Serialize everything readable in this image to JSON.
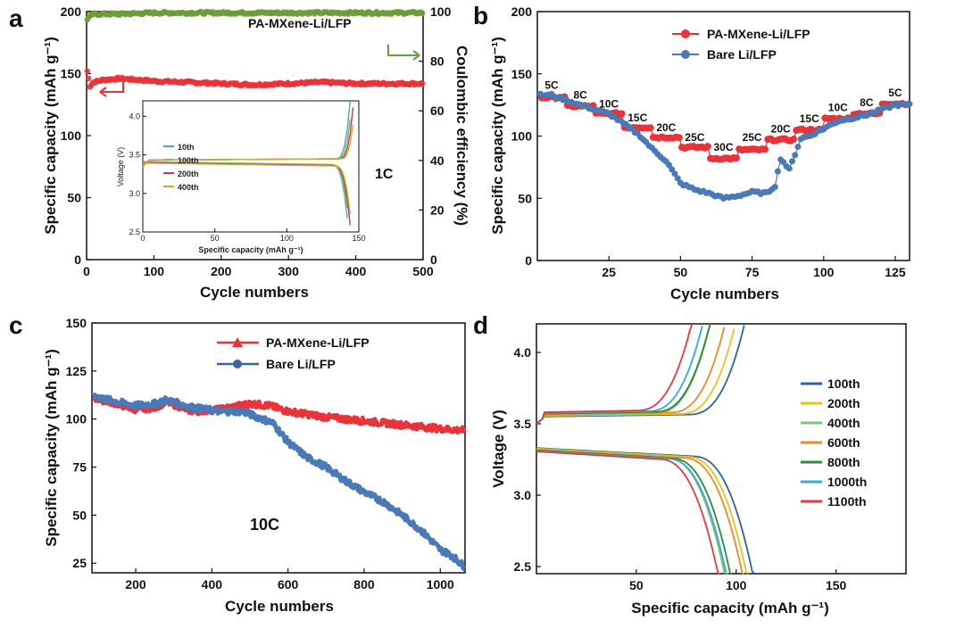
{
  "panels": {
    "a": "a",
    "b": "b",
    "c": "c",
    "d": "d"
  },
  "colors": {
    "red": "#e8333a",
    "green": "#6e9c3a",
    "blue": "#4a79b8",
    "darkred": "#d4202c"
  },
  "chart_data": [
    {
      "id": "a",
      "type": "scatter",
      "title": "PA-MXene-Li/LFP",
      "annotation": "1C",
      "xlabel": "Cycle numbers",
      "ylabel": "Specific capacity (mAh g⁻¹)",
      "y2label": "Coulombic efficiency (%)",
      "xlim": [
        0,
        500
      ],
      "ylim": [
        0,
        200
      ],
      "y2lim": [
        0,
        100
      ],
      "xticks": [
        "0",
        "100",
        "200",
        "300",
        "400",
        "500"
      ],
      "yticks": [
        "0",
        "50",
        "100",
        "150",
        "200"
      ],
      "y2ticks": [
        "0",
        "20",
        "40",
        "60",
        "80",
        "100"
      ],
      "series": [
        {
          "name": "Specific capacity",
          "axis": "left",
          "color": "#e8333a",
          "x": [
            1,
            5,
            10,
            25,
            50,
            100,
            150,
            200,
            250,
            300,
            350,
            400,
            450,
            500
          ],
          "y": [
            152,
            140,
            143,
            145,
            146,
            144,
            143,
            142,
            141,
            142,
            143,
            142,
            142,
            142
          ]
        },
        {
          "name": "Coulombic efficiency",
          "axis": "right",
          "color": "#6e9c3a",
          "x": [
            1,
            5,
            10,
            25,
            50,
            100,
            150,
            200,
            250,
            300,
            350,
            400,
            450,
            500
          ],
          "y": [
            97,
            98,
            99,
            99,
            99,
            99.5,
            99.5,
            99.5,
            99.5,
            99.5,
            99.5,
            99.5,
            99.5,
            99.5
          ]
        }
      ],
      "inset": {
        "type": "line",
        "xlabel": "Specific capacity (mAh g⁻¹)",
        "ylabel": "Voltage (V)",
        "xlim": [
          0,
          150
        ],
        "ylim": [
          2.5,
          4.2
        ],
        "xticks": [
          "0",
          "50",
          "100",
          "150"
        ],
        "yticks": [
          "2.5",
          "3.0",
          "3.5",
          "4.0"
        ],
        "legend": [
          {
            "name": "10th",
            "color": "#4aa8c4"
          },
          {
            "name": "100th",
            "color": "#7cbf5a"
          },
          {
            "name": "200th",
            "color": "#c0395a"
          },
          {
            "name": "400th",
            "color": "#d9a82a"
          }
        ]
      }
    },
    {
      "id": "b",
      "type": "scatter",
      "xlabel": "Cycle numbers",
      "ylabel": "Specific capacity (mAh g⁻¹)",
      "xlim": [
        0,
        130
      ],
      "ylim": [
        0,
        200
      ],
      "xticks": [
        "25",
        "50",
        "75",
        "100",
        "125"
      ],
      "yticks": [
        "0",
        "50",
        "100",
        "150",
        "200"
      ],
      "rates": [
        {
          "label": "5C",
          "x": 5,
          "y": 138
        },
        {
          "label": "8C",
          "x": 15,
          "y": 130
        },
        {
          "label": "10C",
          "x": 25,
          "y": 123
        },
        {
          "label": "15C",
          "x": 35,
          "y": 112
        },
        {
          "label": "20C",
          "x": 45,
          "y": 104
        },
        {
          "label": "25C",
          "x": 55,
          "y": 96
        },
        {
          "label": "30C",
          "x": 65,
          "y": 88
        },
        {
          "label": "25C",
          "x": 75,
          "y": 96
        },
        {
          "label": "20C",
          "x": 85,
          "y": 103
        },
        {
          "label": "15C",
          "x": 95,
          "y": 111
        },
        {
          "label": "10C",
          "x": 105,
          "y": 120
        },
        {
          "label": "8C",
          "x": 115,
          "y": 124
        },
        {
          "label": "5C",
          "x": 125,
          "y": 132
        }
      ],
      "series": [
        {
          "name": "PA-MXene-Li/LFP",
          "color": "#e8333a",
          "x": [
            5,
            15,
            25,
            35,
            45,
            55,
            65,
            75,
            85,
            95,
            105,
            115,
            125
          ],
          "y": [
            131,
            124,
            118,
            107,
            99,
            91,
            82,
            89,
            97,
            105,
            114,
            118,
            126
          ]
        },
        {
          "name": "Bare Li/LFP",
          "color": "#4a79b8",
          "x": [
            5,
            15,
            25,
            32,
            36,
            40,
            45,
            50,
            55,
            60,
            65,
            70,
            75,
            80,
            83,
            85,
            88,
            92,
            95,
            105,
            115,
            125
          ],
          "y": [
            133,
            125,
            118,
            107,
            100,
            90,
            80,
            62,
            57,
            54,
            50,
            52,
            55,
            54,
            60,
            82,
            73,
            98,
            100,
            112,
            117,
            125
          ]
        }
      ]
    },
    {
      "id": "c",
      "type": "line",
      "annotation": "10C",
      "xlabel": "Cycle numbers",
      "ylabel": "Specific capacity (mAh g⁻¹)",
      "xlim": [
        85,
        1065
      ],
      "ylim": [
        20,
        150
      ],
      "xticks": [
        "200",
        "400",
        "600",
        "800",
        "1000"
      ],
      "yticks": [
        "25",
        "50",
        "75",
        "100",
        "125",
        "150"
      ],
      "series": [
        {
          "name": "PA-MXene-Li/LFP",
          "color": "#e8333a",
          "x": [
            90,
            150,
            200,
            250,
            280,
            350,
            420,
            500,
            550,
            600,
            700,
            800,
            900,
            1000,
            1065
          ],
          "y": [
            111,
            108,
            105,
            106,
            109,
            104,
            105,
            108,
            107,
            104,
            101,
            99,
            97,
            95,
            94
          ]
        },
        {
          "name": "Bare Li/LFP",
          "color": "#4a79b8",
          "x": [
            90,
            150,
            200,
            250,
            280,
            350,
            420,
            480,
            520,
            560,
            600,
            650,
            700,
            750,
            800,
            850,
            900,
            950,
            1000,
            1030,
            1065
          ],
          "y": [
            112,
            109,
            107,
            108,
            110,
            106,
            104,
            104,
            101,
            98,
            88,
            80,
            75,
            68,
            62,
            57,
            50,
            42,
            32,
            29,
            23
          ]
        }
      ]
    },
    {
      "id": "d",
      "type": "line",
      "xlabel": "Specific capacity (mAh g⁻¹)",
      "ylabel": "Voltage (V)",
      "xlim": [
        0,
        185
      ],
      "ylim": [
        2.45,
        4.2
      ],
      "xticks": [
        "50",
        "100",
        "150"
      ],
      "yticks": [
        "2.5",
        "3.0",
        "3.5",
        "4.0"
      ],
      "series": [
        {
          "name": "100th",
          "color": "#2f62a8",
          "qmax": 109
        },
        {
          "name": "200th",
          "color": "#e8c41a",
          "qmax": 106
        },
        {
          "name": "400th",
          "color": "#7cc576",
          "qmax": 95
        },
        {
          "name": "600th",
          "color": "#f08a24",
          "qmax": 104
        },
        {
          "name": "800th",
          "color": "#2e8b3a",
          "qmax": 98
        },
        {
          "name": "1000th",
          "color": "#39a8d8",
          "qmax": 96
        },
        {
          "name": "1100th",
          "color": "#e23b3b",
          "qmax": 92
        }
      ]
    }
  ]
}
